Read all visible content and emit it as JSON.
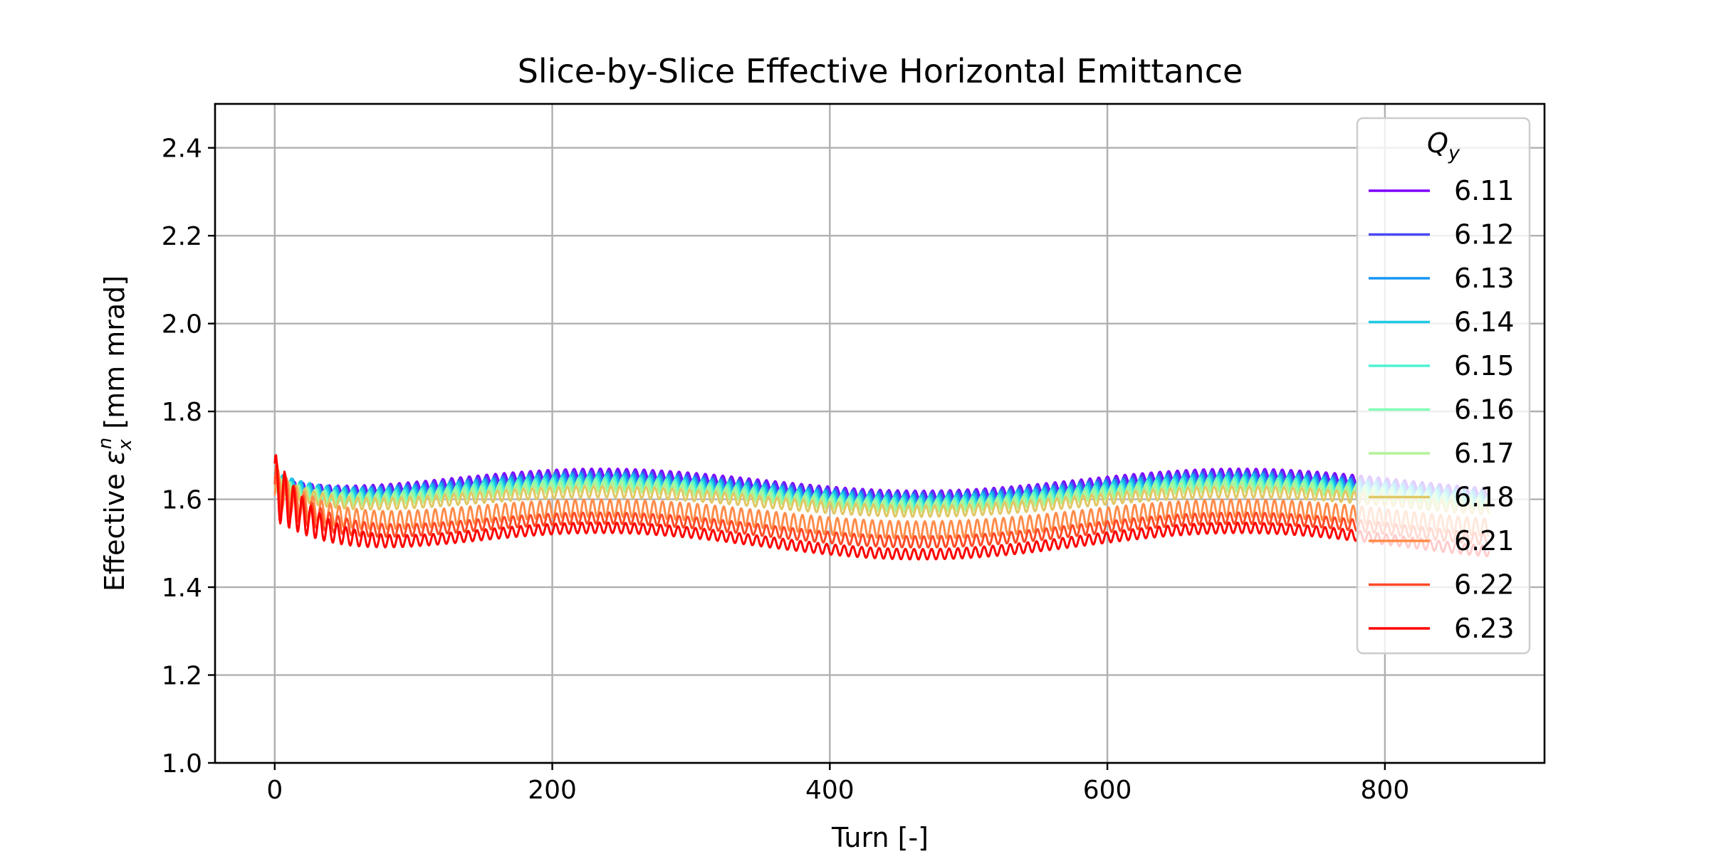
{
  "chart_data": {
    "type": "line",
    "title": "Slice-by-Slice Effective Horizontal Emittance",
    "xlabel": "Turn [-]",
    "ylabel_main": "Effective ",
    "ylabel_symbol": "ε",
    "ylabel_sub": "x",
    "ylabel_sup": "n",
    "ylabel_units": " [mm mrad]",
    "xlim": [
      -43,
      915
    ],
    "ylim": [
      1.0,
      2.5
    ],
    "xticks": [
      0,
      200,
      400,
      600,
      800
    ],
    "xtick_labels": [
      "0",
      "200",
      "400",
      "600",
      "800"
    ],
    "yticks": [
      1.0,
      1.2,
      1.4,
      1.6,
      1.8,
      2.0,
      2.2,
      2.4
    ],
    "ytick_labels": [
      "1.0",
      "1.2",
      "1.4",
      "1.6",
      "1.8",
      "2.0",
      "2.2",
      "2.4"
    ],
    "grid": true,
    "legend": {
      "placement": "upper-right",
      "title_main": "Q",
      "title_sub": "y"
    },
    "x_range": [
      0,
      875
    ],
    "oscillation_period_turns": 6.3,
    "series": [
      {
        "name": "6.11",
        "color": "#8000ff",
        "start": 1.66,
        "mean": 1.635,
        "wave_amp": 0.025,
        "osc_amp": 0.01
      },
      {
        "name": "6.12",
        "color": "#4a48f3",
        "start": 1.66,
        "mean": 1.63,
        "wave_amp": 0.024,
        "osc_amp": 0.011
      },
      {
        "name": "6.13",
        "color": "#1996f3",
        "start": 1.67,
        "mean": 1.625,
        "wave_amp": 0.024,
        "osc_amp": 0.011
      },
      {
        "name": "6.14",
        "color": "#1dcae3",
        "start": 1.67,
        "mean": 1.62,
        "wave_amp": 0.024,
        "osc_amp": 0.012
      },
      {
        "name": "6.15",
        "color": "#4ef2d3",
        "start": 1.66,
        "mean": 1.615,
        "wave_amp": 0.024,
        "osc_amp": 0.012
      },
      {
        "name": "6.16",
        "color": "#80ffb4",
        "start": 1.66,
        "mean": 1.61,
        "wave_amp": 0.024,
        "osc_amp": 0.012
      },
      {
        "name": "6.17",
        "color": "#b2f296",
        "start": 1.66,
        "mean": 1.605,
        "wave_amp": 0.023,
        "osc_amp": 0.012
      },
      {
        "name": "6.18",
        "color": "#e0c864",
        "start": 1.66,
        "mean": 1.595,
        "wave_amp": 0.022,
        "osc_amp": 0.013
      },
      {
        "name": "6.21",
        "color": "#ff8c4a",
        "start": 1.66,
        "mean": 1.555,
        "wave_amp": 0.025,
        "osc_amp": 0.02
      },
      {
        "name": "6.22",
        "color": "#ff4a26",
        "start": 1.66,
        "mean": 1.53,
        "wave_amp": 0.027,
        "osc_amp": 0.013
      },
      {
        "name": "6.23",
        "color": "#ff0000",
        "start": 1.66,
        "mean": 1.505,
        "wave_amp": 0.03,
        "osc_amp": 0.012
      }
    ]
  }
}
